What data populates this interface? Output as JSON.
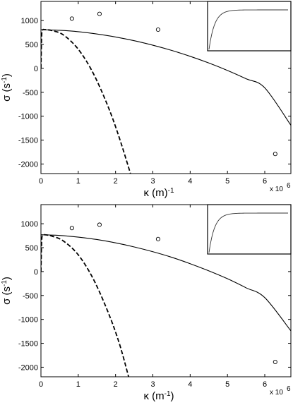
{
  "chart_data": [
    {
      "type": "line",
      "xlabel": "κ (m)",
      "xlabel_sup": "-1",
      "ylabel": "σ (s",
      "ylabel_sup": "-1",
      "ylabel_close": ")",
      "x_multiplier": "x 10",
      "x_multiplier_exp": "6",
      "xlim": [
        0,
        6.7
      ],
      "ylim": [
        -2200,
        1400
      ],
      "x_ticks": [
        "0",
        "1",
        "2",
        "3",
        "4",
        "5",
        "6"
      ],
      "y_ticks": [
        "1000",
        "500",
        "0",
        "-500",
        "-1000",
        "-1500",
        "-2000"
      ],
      "series": [
        {
          "style": "solid",
          "x": [
            0,
            0.5,
            1,
            1.5,
            2,
            2.5,
            3,
            3.5,
            4,
            4.5,
            5,
            5.5,
            6,
            6.7
          ],
          "y": [
            810,
            796,
            767,
            718,
            656,
            578,
            484,
            376,
            252,
            112,
            -44,
            -218,
            -408,
            -1190
          ]
        },
        {
          "style": "dashed",
          "x": [
            0,
            0.02,
            0.05,
            0.1,
            0.3,
            0.6,
            1.0,
            1.4,
            1.8,
            2.1,
            2.4
          ],
          "y": [
            0,
            700,
            805,
            810,
            790,
            700,
            400,
            -100,
            -800,
            -1450,
            -2200
          ]
        },
        {
          "style": "markers",
          "x": [
            0.83,
            1.57,
            3.14,
            6.28
          ],
          "y": [
            1040,
            1140,
            810,
            -1790
          ]
        }
      ],
      "inset": {
        "shape": "saturating-curve"
      }
    },
    {
      "type": "line",
      "xlabel": "κ (m",
      "xlabel_sup": "-1",
      "xlabel_close": ")",
      "ylabel": "σ (s",
      "ylabel_sup": "-1",
      "ylabel_close": ")",
      "x_multiplier": "x 10",
      "x_multiplier_exp": "6",
      "xlim": [
        0,
        6.7
      ],
      "ylim": [
        -2200,
        1400
      ],
      "x_ticks": [
        "0",
        "1",
        "2",
        "3",
        "4",
        "5",
        "6"
      ],
      "y_ticks": [
        "1000",
        "500",
        "0",
        "-500",
        "-1000",
        "-1500",
        "-2000"
      ],
      "series": [
        {
          "style": "solid",
          "x": [
            0,
            0.5,
            1,
            1.5,
            2,
            2.5,
            3,
            3.5,
            4,
            4.5,
            5,
            5.5,
            6,
            6.7
          ],
          "y": [
            770,
            755,
            720,
            670,
            600,
            515,
            415,
            300,
            165,
            15,
            -150,
            -340,
            -545,
            -1240
          ]
        },
        {
          "style": "dashed",
          "x": [
            0,
            0.02,
            0.05,
            0.1,
            0.3,
            0.6,
            1.0,
            1.4,
            1.8,
            2.1,
            2.35
          ],
          "y": [
            0,
            650,
            760,
            770,
            740,
            640,
            350,
            -150,
            -850,
            -1500,
            -2200
          ]
        },
        {
          "style": "markers",
          "x": [
            0.83,
            1.57,
            3.14,
            6.28
          ],
          "y": [
            910,
            980,
            680,
            -1890
          ]
        }
      ],
      "inset": {
        "shape": "saturating-curve"
      }
    }
  ]
}
